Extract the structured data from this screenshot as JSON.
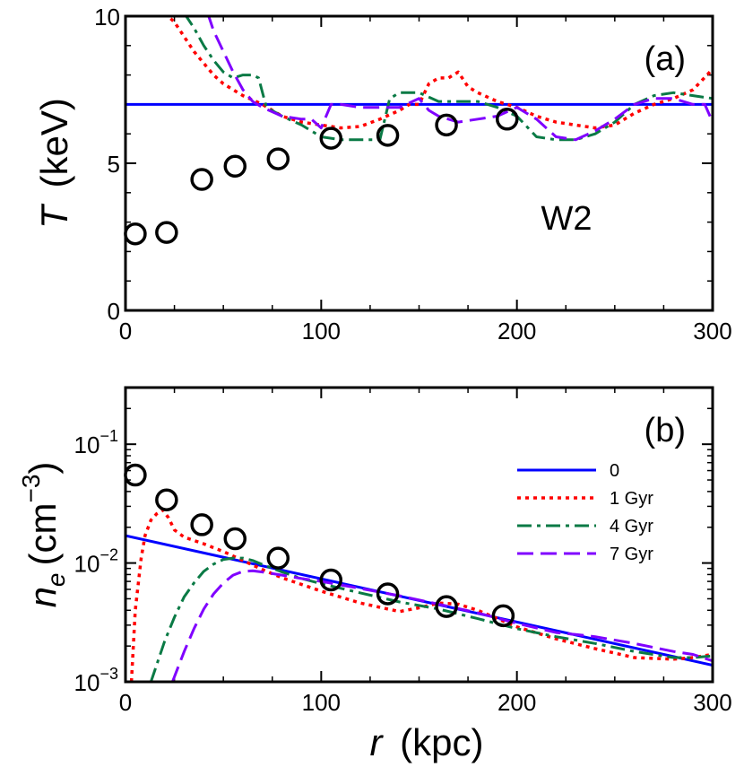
{
  "chart_data": [
    {
      "type": "line",
      "panel_label": "(a)",
      "annotation": "W2",
      "ylabel_symbol": "T",
      "ylabel_unit": "(keV)",
      "xlim": [
        0,
        300
      ],
      "ylim": [
        0,
        10
      ],
      "x_ticks": [
        0,
        100,
        200,
        300
      ],
      "y_ticks": [
        0,
        5,
        10
      ],
      "x_tick_labels": [
        "0",
        "100",
        "200",
        "300"
      ],
      "y_tick_labels": [
        "0",
        "5",
        "10"
      ],
      "observed": {
        "x": [
          5,
          21,
          39,
          56,
          78,
          105,
          134,
          164,
          195
        ],
        "y": [
          2.6,
          2.65,
          4.45,
          4.9,
          5.15,
          5.85,
          5.95,
          6.3,
          6.5
        ]
      },
      "series": [
        {
          "key": "0",
          "color": "#0000ff",
          "dash": "solid",
          "x": [
            0,
            300
          ],
          "y": [
            7.0,
            7.0
          ]
        },
        {
          "key": "1 Gyr",
          "color": "#ff0000",
          "dash": "dot",
          "x": [
            20,
            25,
            30,
            35,
            40,
            45,
            50,
            55,
            60,
            65,
            70,
            75,
            80,
            90,
            100,
            110,
            120,
            130,
            140,
            145,
            150,
            155,
            160,
            165,
            170,
            175,
            180,
            190,
            200,
            210,
            220,
            230,
            240,
            250,
            260,
            270,
            280,
            290,
            300
          ],
          "y": [
            10.1,
            9.8,
            9.3,
            8.8,
            8.4,
            8.0,
            7.7,
            7.5,
            7.3,
            7.15,
            7.0,
            6.8,
            6.6,
            6.4,
            6.3,
            6.2,
            6.25,
            6.5,
            6.8,
            7.0,
            7.0,
            7.7,
            7.9,
            7.9,
            8.1,
            7.6,
            7.4,
            7.1,
            6.9,
            6.6,
            6.4,
            6.3,
            6.2,
            6.3,
            6.7,
            7.0,
            7.2,
            7.5,
            8.2
          ]
        },
        {
          "key": "4 Gyr",
          "color": "#0a7a45",
          "dash": "dashdot",
          "x": [
            30,
            35,
            40,
            45,
            50,
            55,
            60,
            65,
            68,
            72,
            80,
            90,
            100,
            110,
            120,
            130,
            135,
            140,
            150,
            160,
            170,
            180,
            190,
            200,
            210,
            220,
            230,
            240,
            250,
            260,
            270,
            280,
            290,
            300
          ],
          "y": [
            10.1,
            9.6,
            9.0,
            8.5,
            8.1,
            7.9,
            8.0,
            8.0,
            7.9,
            6.9,
            6.6,
            6.3,
            5.9,
            5.8,
            5.8,
            5.8,
            7.2,
            7.4,
            7.4,
            7.1,
            7.1,
            7.1,
            6.9,
            6.6,
            5.9,
            5.8,
            5.8,
            6.0,
            6.4,
            7.0,
            7.3,
            7.4,
            7.3,
            7.2
          ]
        },
        {
          "key": "7 Gyr",
          "color": "#8000ff",
          "dash": "dash",
          "x": [
            42,
            45,
            50,
            55,
            60,
            65,
            70,
            80,
            90,
            95,
            100,
            105,
            110,
            120,
            130,
            140,
            150,
            155,
            160,
            170,
            180,
            190,
            200,
            210,
            220,
            230,
            240,
            250,
            260,
            270,
            280,
            290,
            296,
            300
          ],
          "y": [
            10.1,
            9.5,
            8.8,
            8.1,
            7.5,
            7.1,
            6.9,
            6.6,
            6.5,
            6.5,
            6.2,
            7.0,
            7.0,
            6.9,
            6.9,
            6.9,
            7.2,
            6.8,
            6.6,
            6.4,
            6.5,
            6.6,
            6.9,
            6.5,
            5.9,
            5.8,
            6.1,
            6.5,
            7.0,
            7.2,
            7.2,
            7.0,
            7.0,
            6.4
          ]
        }
      ]
    },
    {
      "type": "line",
      "panel_label": "(b)",
      "ylabel_symbol": "n",
      "ylabel_sub": "e",
      "ylabel_unit_pre": "(cm",
      "ylabel_unit_sup": "−3",
      "ylabel_unit_post": ")",
      "xlabel_symbol": "r",
      "xlabel_unit": "(kpc)",
      "yscale": "log",
      "xlim": [
        0,
        300
      ],
      "ylim": [
        0.001,
        0.3
      ],
      "x_ticks": [
        0,
        100,
        200,
        300
      ],
      "x_tick_labels": [
        "0",
        "100",
        "200",
        "300"
      ],
      "y_ticks": [
        0.001,
        0.01,
        0.1
      ],
      "y_tick_label_base": "10",
      "y_tick_label_exponents": [
        "−3",
        "−2",
        "−1"
      ],
      "legend": {
        "entries": [
          "0",
          "1 Gyr",
          "4 Gyr",
          "7 Gyr"
        ]
      },
      "observed": {
        "x": [
          5,
          21,
          39,
          56,
          78,
          105,
          134,
          164,
          193
        ],
        "y": [
          0.055,
          0.034,
          0.021,
          0.016,
          0.011,
          0.0072,
          0.0055,
          0.0043,
          0.0036
        ]
      },
      "series": [
        {
          "key": "0",
          "color": "#0000ff",
          "dash": "solid",
          "x": [
            0,
            300
          ],
          "y": [
            0.017,
            0.00138
          ]
        },
        {
          "key": "1 Gyr",
          "color": "#ff0000",
          "dash": "dot",
          "x": [
            3,
            5,
            8,
            10,
            13,
            16,
            19,
            22,
            25,
            30,
            40,
            50,
            60,
            70,
            80,
            100,
            120,
            140,
            150,
            160,
            170,
            180,
            200,
            220,
            240,
            260,
            280,
            290,
            300
          ],
          "y": [
            0.001,
            0.004,
            0.011,
            0.017,
            0.023,
            0.026,
            0.028,
            0.024,
            0.019,
            0.0165,
            0.0145,
            0.0125,
            0.0105,
            0.0088,
            0.0075,
            0.0058,
            0.0046,
            0.0039,
            0.0042,
            0.0046,
            0.0045,
            0.004,
            0.0029,
            0.0023,
            0.0019,
            0.0016,
            0.00155,
            0.0016,
            0.0017
          ]
        },
        {
          "key": "4 Gyr",
          "color": "#0a7a45",
          "dash": "dashdot",
          "x": [
            13,
            20,
            25,
            30,
            35,
            40,
            45,
            50,
            55,
            60,
            65,
            70,
            80,
            90,
            100,
            120,
            140,
            160,
            180,
            200,
            220,
            240,
            260,
            280,
            290,
            300
          ],
          "y": [
            0.001,
            0.0022,
            0.0035,
            0.0052,
            0.0068,
            0.0085,
            0.0098,
            0.0107,
            0.011,
            0.011,
            0.0105,
            0.0097,
            0.0084,
            0.0074,
            0.0067,
            0.0056,
            0.0047,
            0.0041,
            0.0034,
            0.0028,
            0.0024,
            0.0021,
            0.0018,
            0.0016,
            0.0016,
            0.00165
          ]
        },
        {
          "key": "7 Gyr",
          "color": "#8000ff",
          "dash": "dash",
          "x": [
            24,
            30,
            35,
            40,
            45,
            50,
            55,
            60,
            65,
            70,
            80,
            90,
            100,
            120,
            140,
            160,
            180,
            200,
            220,
            230,
            240,
            260,
            280,
            290,
            300
          ],
          "y": [
            0.001,
            0.0018,
            0.0028,
            0.0041,
            0.0055,
            0.0068,
            0.0079,
            0.0085,
            0.0086,
            0.0084,
            0.0079,
            0.0074,
            0.007,
            0.0061,
            0.0053,
            0.0045,
            0.0038,
            0.0031,
            0.0026,
            0.0025,
            0.0024,
            0.0021,
            0.0018,
            0.0017,
            0.0015
          ]
        }
      ]
    }
  ]
}
